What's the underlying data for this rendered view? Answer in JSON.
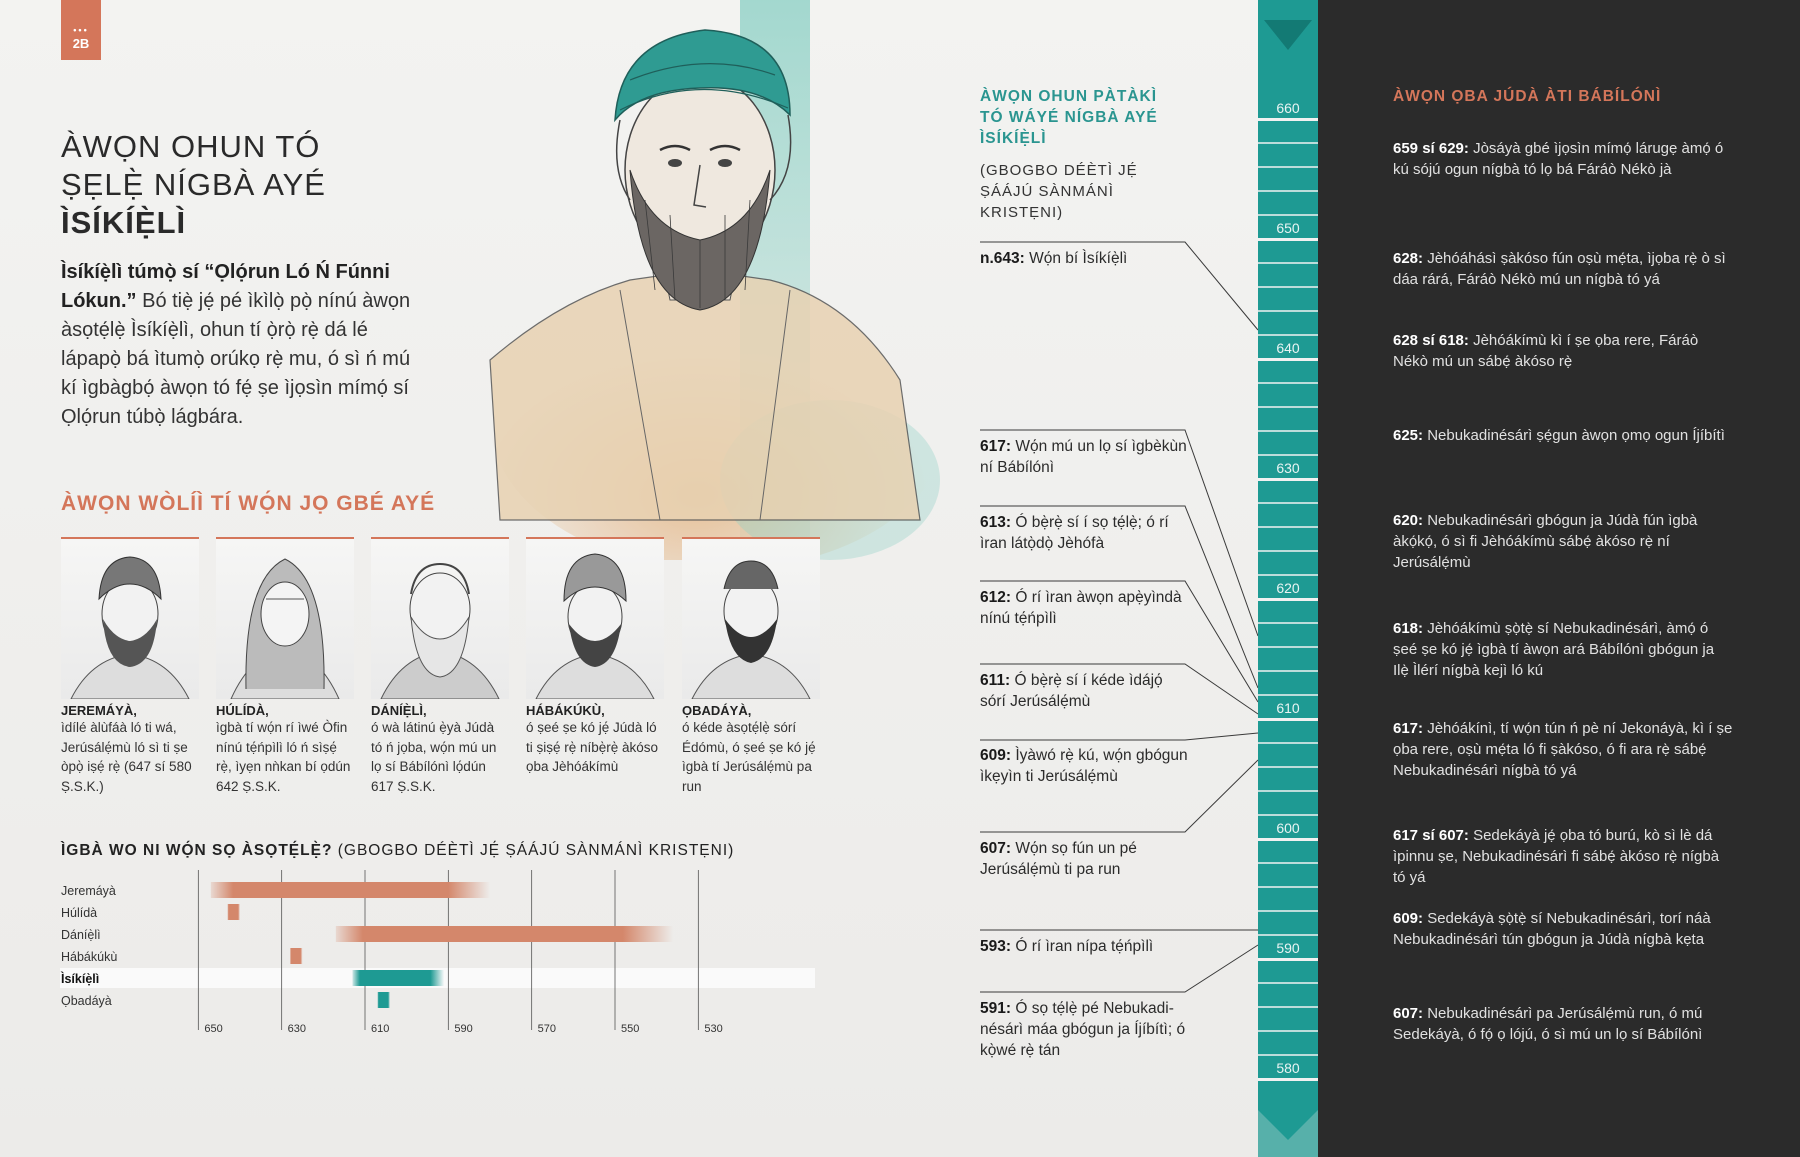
{
  "page_tag": {
    "dots": "•••",
    "number": "2B"
  },
  "title": {
    "line1": "ÀWỌN OHUN TÓ",
    "line2": "ṢẸLẸ̀ NÍGBÀ AYÉ",
    "line3": "ÌSÍKÍẸ̀LÌ"
  },
  "intro": {
    "bold": "Ìsíkíẹ̀lì túmọ̀ sí “Ọlọ́run Ló Ń Fúnni Lókun.”",
    "text": " Bó tiẹ̀ jẹ́ pé ìkìlọ̀ pọ̀ nínú àwọn àsọtẹ́lẹ̀ Ìsíkíẹ̀lì, ohun tí ọ̀rọ̀ rẹ̀ dá lé lápapọ̀ bá ìtumọ̀ orúkọ rẹ̀ mu, ó sì ń mú kí ìgbàgbọ́ àwọn tó fẹ́ ṣe ìjọsìn mímọ́ sí Ọlọ́run túbọ̀ lágbára."
  },
  "prophets_section": {
    "title": "ÀWỌN WÒLÍÌ TÍ WỌ́N JỌ GBÉ AYÉ",
    "items": [
      {
        "name": "JEREMÁYÀ,",
        "desc": "ìdílé àlùfáà ló ti wá, Jerúsálẹ́mù ló sì ti ṣe òpọ̀ iṣẹ́ rẹ̀ (647 sí 580 Ṣ.S.K.)"
      },
      {
        "name": "HÚLÍDÀ,",
        "desc": "ìgbà tí wọ́n rí ìwé Òfin nínú tẹ́ńpìlì ló ń sìṣẹ́ rẹ̀, ìyẹn nǹkan bí ọdún 642 Ṣ.S.K."
      },
      {
        "name": "DÁNÍẸ̀LÌ,",
        "desc": "ó wà látinú ẹ̀yà Júdà tó ń jọba, wọ́n mú un lọ sí Bábílónì lọ́dún 617 Ṣ.S.K."
      },
      {
        "name": "HÁBÁKÚKÙ,",
        "desc": "ó ṣeé ṣe kó jẹ́ Júdà ló ti ṣiṣẹ́ rẹ̀ níbẹ̀rẹ̀ àkóso ọba Jèhóákímù"
      },
      {
        "name": "ỌBADÁYÀ,",
        "desc": "ó kéde àsọtẹ́lẹ̀ sórí Édómù, ó ṣeé ṣe kó jẹ́ ìgbà tí Jerúsálẹ́mù pa run"
      }
    ]
  },
  "chart_data": {
    "type": "bar",
    "title": "ÌGBÀ WO NI WỌ́N SỌ ÀSỌTẸ́LẸ̀? (GBOGBO DÉÈTÌ JẸ́ ṢÁÁJÚ SÀNMÁNÌ KRISTẸNI)",
    "title_bold": "ÌGBÀ WO NI WỌ́N SỌ ÀSỌTẸ́LẸ̀?",
    "title_rest": " (GBOGBO DÉÈTÌ JẸ́ ṢÁÁJÚ SÀNMÁNÌ KRISTẸNI)",
    "x_ticks": [
      "650",
      "630",
      "610",
      "590",
      "570",
      "550",
      "530"
    ],
    "x_range": [
      652,
      520
    ],
    "series": [
      {
        "name": "Jeremáyà",
        "start": 647,
        "end": 580,
        "color": "#d4876b",
        "highlight": false
      },
      {
        "name": "Húlídà",
        "start": 643,
        "end": 640,
        "color": "#d4876b",
        "highlight": false
      },
      {
        "name": "Dáníẹ̀lì",
        "start": 617,
        "end": 536,
        "color": "#d4876b",
        "highlight": false
      },
      {
        "name": "Hábákúkù",
        "start": 628,
        "end": 625,
        "color": "#d4876b",
        "highlight": false
      },
      {
        "name": "Ìsíkíẹ̀lì",
        "start": 613,
        "end": 591,
        "color": "#1e9a93",
        "highlight": true
      },
      {
        "name": "Ọbadáyà",
        "start": 607,
        "end": 604,
        "color": "#1e9a93",
        "highlight": false
      }
    ]
  },
  "ezekiel_column": {
    "heading": "ÀWỌN OHUN PÀTÀKÌ TÓ WÁYÉ NÍGBÀ AYÉ ÌSÍKÍẸ̀LÌ",
    "subheading": "(GBOGBO DÉÈTÌ JẸ́ ṢÁÁJÚ SÀNMÁNÌ KRISTẸNI)",
    "events": [
      {
        "date": "n.643:",
        "text": " Wọ́n bí Ìsíkíẹ̀lì"
      },
      {
        "date": "617:",
        "text": " Wọ́n mú un lọ sí ìgbèkùn ní Bábílónì"
      },
      {
        "date": "613:",
        "text": " Ó bẹ̀rẹ̀ sí í sọ tẹ́lẹ̀; ó rí ìran látọ̀dọ̀ Jèhófà"
      },
      {
        "date": "612:",
        "text": " Ó rí ìran àwọn apẹ̀yìndà nínú tẹ́ńpìlì"
      },
      {
        "date": "611:",
        "text": " Ó bẹ̀rẹ̀ sí í kéde ìdájọ́ sórí Jerúsálẹ́mù"
      },
      {
        "date": "609:",
        "text": " Ìyàwó rẹ̀ kú, wọ́n gbógun ìkẹyìn ti Jerúsálẹ́mù"
      },
      {
        "date": "607:",
        "text": " Wọ́n sọ fún un pé Jerúsálẹ́mù ti pa run"
      },
      {
        "date": "593:",
        "text": " Ó rí ìran nípa tẹ́ńpìlì"
      },
      {
        "date": "591:",
        "text": " Ó sọ tẹ́lẹ̀ pé Nebukadi-nésárì máa gbógun ja Íjíbítì; ó kọ̀wé rẹ̀ tán"
      }
    ]
  },
  "timeline": {
    "labels": [
      "660",
      "650",
      "640",
      "630",
      "620",
      "610",
      "600",
      "590",
      "580"
    ]
  },
  "kings_column": {
    "heading": "ÀWỌN ỌBA JÚDÀ ÀTI BÁBÍLÓNÌ",
    "events": [
      {
        "date": "659 sí 629:",
        "text": " Jòsáyà gbé ìjọsìn mímọ́ lárugẹ àmọ́ ó kú sójú ogun nígbà tó lọ bá Fáráò Nékò jà"
      },
      {
        "date": "628:",
        "text": " Jèhóáhásì ṣàkóso fún oṣù mẹ́ta, ìjọba rẹ̀ ò sì dáa rárá, Fáráò Nékò mú un nígbà tó yá"
      },
      {
        "date": "628 sí 618:",
        "text": " Jèhóákímù kì í ṣe ọba rere, Fáráò Nékò mú un sábẹ́ àkóso rẹ̀"
      },
      {
        "date": "625:",
        "text": " Nebukadinésárì ṣẹ́gun àwọn ọmọ ogun Íjíbítì"
      },
      {
        "date": "620:",
        "text": " Nebukadinésárì gbógun ja Júdà fún ìgbà àkọ́kọ́, ó sì fi Jèhóákímù sábẹ́ àkóso rẹ̀ ní Jerúsálẹ́mù"
      },
      {
        "date": "618:",
        "text": " Jèhóákímù ṣọ̀tẹ̀ sí Nebukadinésárì, àmọ́ ó ṣeé ṣe kó jẹ́ ìgbà tí àwọn ará Bábílónì gbógun ja Ilẹ̀ Ìlérí nígbà kejì ló kú"
      },
      {
        "date": "617:",
        "text": " Jèhóákínì, tí wọ́n tún ń pè ní Jekonáyà, kì í ṣe ọba rere, oṣù mẹ́ta ló fi ṣàkóso, ó fi ara rẹ̀ sábẹ́ Nebukadinésárì nígbà tó yá"
      },
      {
        "date": "617 sí 607:",
        "text": " Sedekáyà jẹ́ ọba tó burú, kò sì lè dá ìpinnu ṣe, Nebukadinésárì fi sábẹ́ àkóso rẹ̀ nígbà tó yá"
      },
      {
        "date": "609:",
        "text": " Sedekáyà ṣọ̀tẹ̀ sí Nebukadinésárì, torí náà Nebukadinésárì tún gbógun ja Júdà nígbà kẹta"
      },
      {
        "date": "607:",
        "text": " Nebukadinésárì pa Jerúsálẹ́mù run, ó mú Sedekáyà, ó fọ́ ọ lójú, ó sì mú un lọ sí Bábílónì"
      }
    ]
  }
}
